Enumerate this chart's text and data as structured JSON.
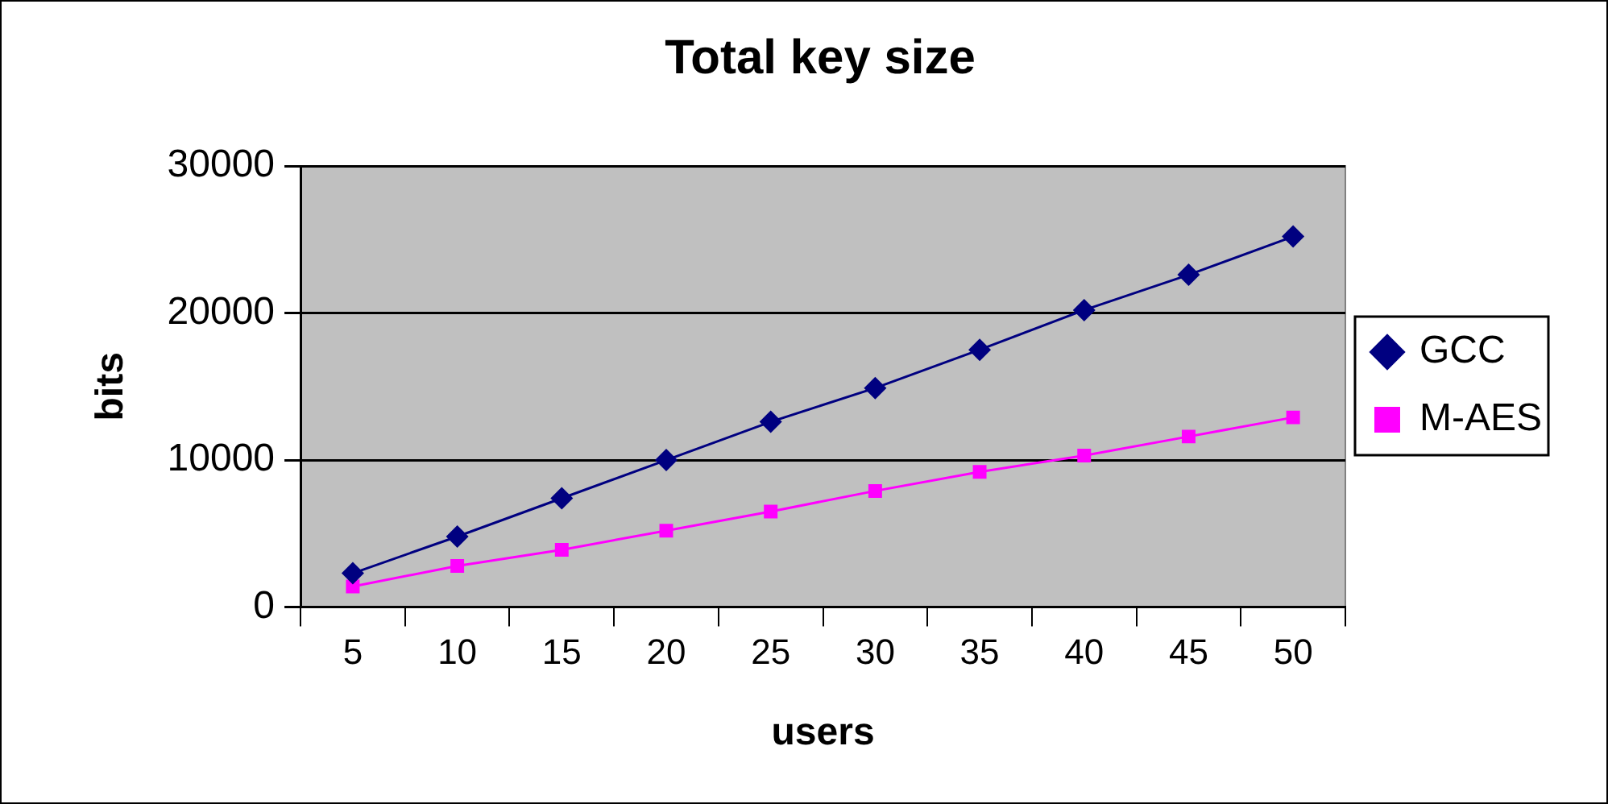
{
  "chart_data": {
    "type": "line",
    "title": "Total key size",
    "xlabel": "users",
    "ylabel": "bits",
    "categories": [
      "5",
      "10",
      "15",
      "20",
      "25",
      "30",
      "35",
      "40",
      "45",
      "50"
    ],
    "series": [
      {
        "name": "GCC",
        "color": "#000080",
        "marker": "diamond",
        "values": [
          2300,
          4800,
          7400,
          10000,
          12600,
          14900,
          17500,
          20200,
          22600,
          25200
        ]
      },
      {
        "name": "M-AES",
        "color": "#ff00ff",
        "marker": "square",
        "values": [
          1400,
          2800,
          3900,
          5200,
          6500,
          7900,
          9200,
          10300,
          11600,
          12900
        ]
      }
    ],
    "ylim": [
      0,
      30000
    ],
    "yticks": [
      0,
      10000,
      20000,
      30000
    ],
    "grid": "y",
    "legend": "right",
    "line_style": "solid"
  }
}
